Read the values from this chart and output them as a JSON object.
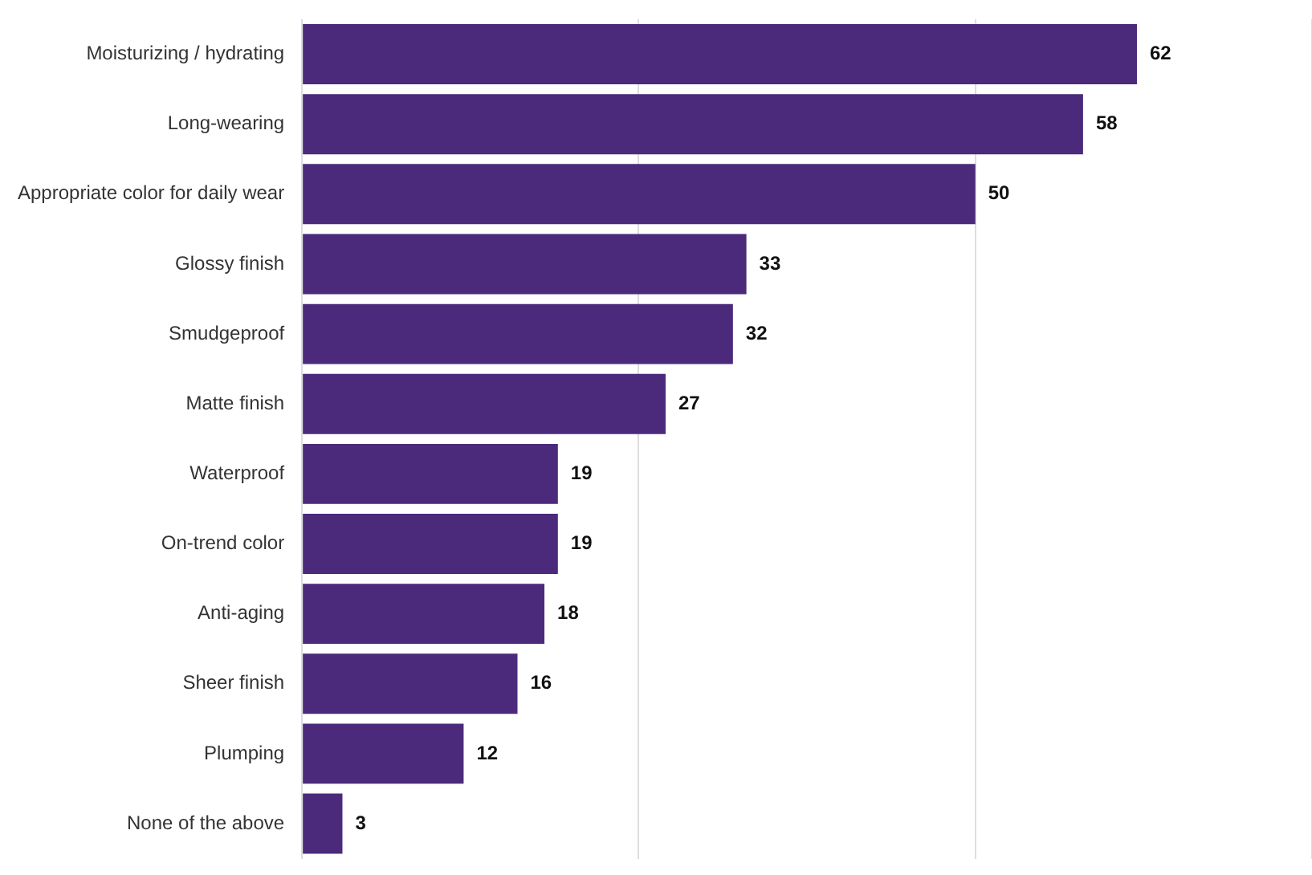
{
  "chart_data": {
    "type": "bar",
    "orientation": "horizontal",
    "categories": [
      "Moisturizing / hydrating",
      "Long-wearing",
      "Appropriate color for daily wear",
      "Glossy finish",
      "Smudgeproof",
      "Matte finish",
      "Waterproof",
      "On-trend color",
      "Anti-aging",
      "Sheer finish",
      "Plumping",
      "None of the above"
    ],
    "values": [
      62,
      58,
      50,
      33,
      32,
      27,
      19,
      19,
      18,
      16,
      12,
      3
    ],
    "color": "#4b2a7b",
    "xlim": [
      0,
      75
    ],
    "xticks": [
      {
        "value": 0,
        "label": null
      },
      {
        "value": 25,
        "label": null
      },
      {
        "value": 50,
        "label": null
      },
      {
        "value": 75,
        "label": null
      }
    ],
    "tick_labels": "y",
    "grid": "x",
    "legend": false,
    "data_labels": true
  }
}
